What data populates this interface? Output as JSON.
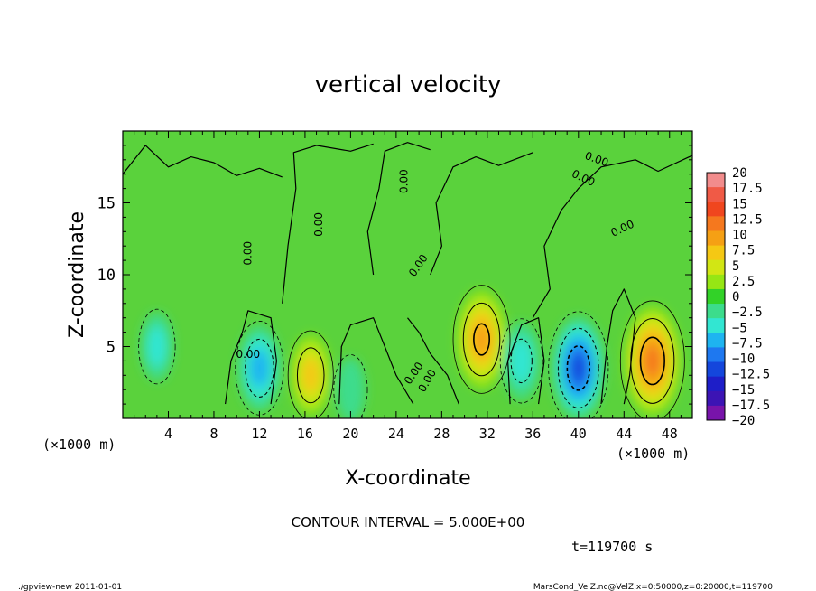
{
  "chart_data": {
    "type": "heatmap",
    "title": "vertical velocity",
    "xlabel": "X-coordinate",
    "ylabel": "Z-coordinate",
    "x_unit_left": "(×1000 m)",
    "x_unit_right": "(×1000 m)",
    "xlim": [
      0,
      50
    ],
    "ylim": [
      0,
      20
    ],
    "xticks": [
      4,
      8,
      12,
      16,
      20,
      24,
      28,
      32,
      36,
      40,
      44,
      48
    ],
    "yticks": [
      5,
      10,
      15
    ],
    "contour_interval_text": "CONTOUR INTERVAL = 5.000E+00",
    "time_text": "t=119700 s",
    "contour_labels": [
      "0.00",
      "0.00",
      "0.00",
      "0.00",
      "0.00",
      "0.00",
      "0.00",
      "0.00",
      "0.00",
      "0.00"
    ],
    "colorbar": {
      "labels": [
        "20",
        "17.5",
        "15",
        "12.5",
        "10",
        "7.5",
        "5",
        "2.5",
        "0",
        "−2.5",
        "−5",
        "−7.5",
        "−10",
        "−12.5",
        "−15",
        "−17.5",
        "−20"
      ],
      "colors": [
        "#f28c8c",
        "#f05a46",
        "#f0461e",
        "#f5781e",
        "#f5a014",
        "#f5c814",
        "#d2e614",
        "#96e614",
        "#32d228",
        "#3cdc8c",
        "#32e6d2",
        "#1eb4f0",
        "#1e78f0",
        "#1446dc",
        "#1e1ec8",
        "#3c14b4",
        "#7814aa"
      ]
    },
    "features": [
      {
        "x": 46.5,
        "z": 4.0,
        "w": 13.5,
        "kind": "updraft"
      },
      {
        "x": 31.5,
        "z": 5.5,
        "w": 11.0,
        "kind": "updraft"
      },
      {
        "x": 16.5,
        "z": 3.0,
        "w": 7.0,
        "kind": "updraft"
      },
      {
        "x": 40.0,
        "z": 3.5,
        "w": -12.0,
        "kind": "downdraft"
      },
      {
        "x": 35.0,
        "z": 4.0,
        "w": -6.0,
        "kind": "downdraft"
      },
      {
        "x": 12.0,
        "z": 3.5,
        "w": -8.0,
        "kind": "downdraft"
      },
      {
        "x": 3.0,
        "z": 5.0,
        "w": -4.0,
        "kind": "downdraft"
      },
      {
        "x": 20.0,
        "z": 2.0,
        "w": -3.0,
        "kind": "downdraft"
      }
    ]
  },
  "footer": {
    "left": "./gpview-new   2011-01-01",
    "right": "MarsCond_VelZ.nc@VelZ,x=0:50000,z=0:20000,t=119700"
  }
}
